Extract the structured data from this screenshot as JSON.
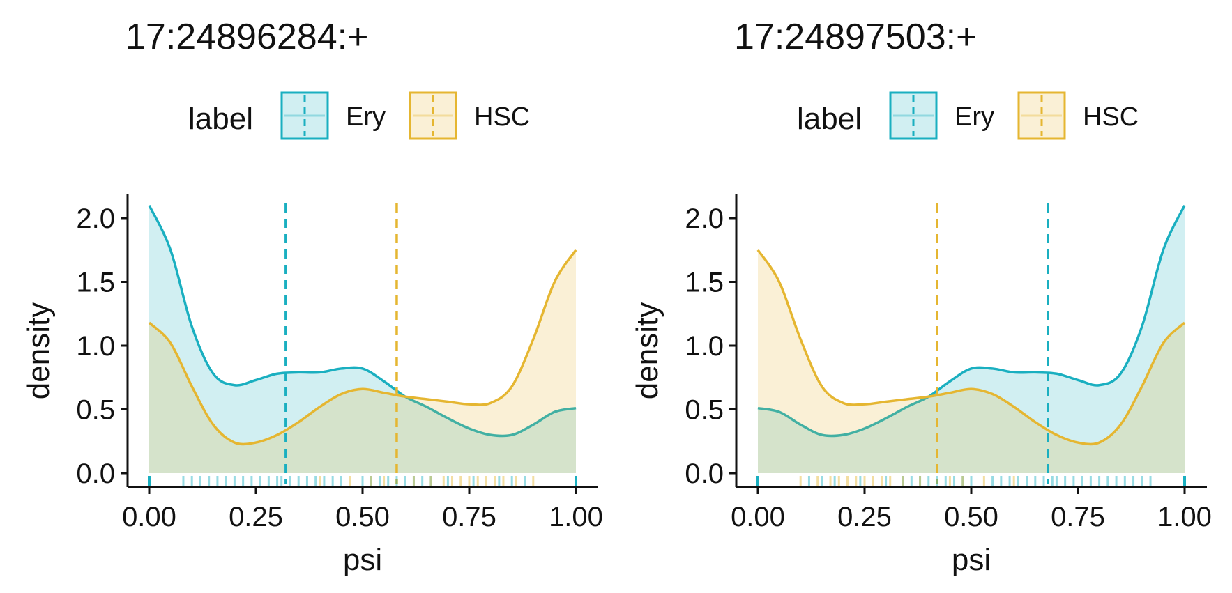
{
  "chart_data": [
    {
      "type": "area",
      "title": "17:24896284:+",
      "xlabel": "psi",
      "ylabel": "density",
      "xlim": [
        0,
        1
      ],
      "ylim": [
        0,
        2.2
      ],
      "xticks": [
        "0.00",
        "0.25",
        "0.50",
        "0.75",
        "1.00"
      ],
      "yticks": [
        "0.0",
        "0.5",
        "1.0",
        "1.5",
        "2.0"
      ],
      "legend": {
        "title": "label",
        "position": "top",
        "entries": [
          "Ery",
          "HSC"
        ]
      },
      "grid": false,
      "series": [
        {
          "name": "Ery",
          "color": "#1aafc0",
          "mean": 0.32,
          "x": [
            0,
            0.05,
            0.1,
            0.15,
            0.2,
            0.25,
            0.3,
            0.35,
            0.4,
            0.45,
            0.5,
            0.55,
            0.6,
            0.65,
            0.7,
            0.75,
            0.8,
            0.85,
            0.9,
            0.95,
            1.0
          ],
          "y": [
            2.1,
            1.75,
            1.15,
            0.78,
            0.69,
            0.73,
            0.78,
            0.79,
            0.79,
            0.82,
            0.82,
            0.72,
            0.6,
            0.52,
            0.43,
            0.35,
            0.3,
            0.3,
            0.38,
            0.48,
            0.51
          ],
          "rug": [
            0.0,
            0.08,
            0.1,
            0.12,
            0.14,
            0.16,
            0.18,
            0.2,
            0.22,
            0.24,
            0.26,
            0.28,
            0.3,
            0.31,
            0.33,
            0.35,
            0.37,
            0.39,
            0.41,
            0.43,
            0.45,
            0.5,
            0.52,
            0.54,
            0.56,
            0.58,
            0.6,
            0.62,
            0.64,
            0.66,
            0.7,
            0.76,
            0.82,
            0.85,
            0.88,
            1.0
          ]
        },
        {
          "name": "HSC",
          "color": "#e5b631",
          "mean": 0.58,
          "x": [
            0,
            0.05,
            0.1,
            0.15,
            0.2,
            0.25,
            0.3,
            0.35,
            0.4,
            0.45,
            0.5,
            0.55,
            0.6,
            0.65,
            0.7,
            0.75,
            0.8,
            0.85,
            0.9,
            0.95,
            1.0
          ],
          "y": [
            1.18,
            1.02,
            0.68,
            0.38,
            0.24,
            0.24,
            0.3,
            0.4,
            0.52,
            0.62,
            0.66,
            0.63,
            0.6,
            0.58,
            0.56,
            0.54,
            0.55,
            0.68,
            1.05,
            1.5,
            1.75
          ],
          "rug": [
            0.4,
            0.47,
            0.52,
            0.55,
            0.62,
            0.66,
            0.69,
            0.71,
            0.73,
            0.75,
            0.77,
            0.79,
            0.81,
            0.83,
            0.86,
            0.9
          ]
        }
      ]
    },
    {
      "type": "area",
      "title": "17:24897503:+",
      "xlabel": "psi",
      "ylabel": "density",
      "xlim": [
        0,
        1
      ],
      "ylim": [
        0,
        2.2
      ],
      "xticks": [
        "0.00",
        "0.25",
        "0.50",
        "0.75",
        "1.00"
      ],
      "yticks": [
        "0.0",
        "0.5",
        "1.0",
        "1.5",
        "2.0"
      ],
      "legend": {
        "title": "label",
        "position": "top",
        "entries": [
          "Ery",
          "HSC"
        ]
      },
      "grid": false,
      "series": [
        {
          "name": "Ery",
          "color": "#1aafc0",
          "mean": 0.68,
          "x": [
            0,
            0.05,
            0.1,
            0.15,
            0.2,
            0.25,
            0.3,
            0.35,
            0.4,
            0.45,
            0.5,
            0.55,
            0.6,
            0.65,
            0.7,
            0.75,
            0.8,
            0.85,
            0.9,
            0.95,
            1.0
          ],
          "y": [
            0.51,
            0.48,
            0.38,
            0.3,
            0.3,
            0.35,
            0.43,
            0.52,
            0.6,
            0.72,
            0.82,
            0.82,
            0.79,
            0.79,
            0.78,
            0.73,
            0.69,
            0.78,
            1.15,
            1.75,
            2.1
          ],
          "rug": [
            0.0,
            0.12,
            0.15,
            0.18,
            0.24,
            0.3,
            0.34,
            0.36,
            0.38,
            0.4,
            0.42,
            0.44,
            0.46,
            0.48,
            0.5,
            0.55,
            0.57,
            0.59,
            0.61,
            0.63,
            0.65,
            0.67,
            0.69,
            0.7,
            0.72,
            0.74,
            0.76,
            0.78,
            0.8,
            0.82,
            0.84,
            0.86,
            0.88,
            0.9,
            0.92,
            1.0
          ]
        },
        {
          "name": "HSC",
          "color": "#e5b631",
          "mean": 0.42,
          "x": [
            0,
            0.05,
            0.1,
            0.15,
            0.2,
            0.25,
            0.3,
            0.35,
            0.4,
            0.45,
            0.5,
            0.55,
            0.6,
            0.65,
            0.7,
            0.75,
            0.8,
            0.85,
            0.9,
            0.95,
            1.0
          ],
          "y": [
            1.75,
            1.5,
            1.05,
            0.68,
            0.55,
            0.54,
            0.56,
            0.58,
            0.6,
            0.63,
            0.66,
            0.62,
            0.52,
            0.4,
            0.3,
            0.24,
            0.24,
            0.38,
            0.68,
            1.02,
            1.18
          ],
          "rug": [
            0.1,
            0.14,
            0.17,
            0.19,
            0.21,
            0.23,
            0.25,
            0.27,
            0.29,
            0.31,
            0.34,
            0.38,
            0.45,
            0.48,
            0.53,
            0.6
          ]
        }
      ]
    }
  ]
}
